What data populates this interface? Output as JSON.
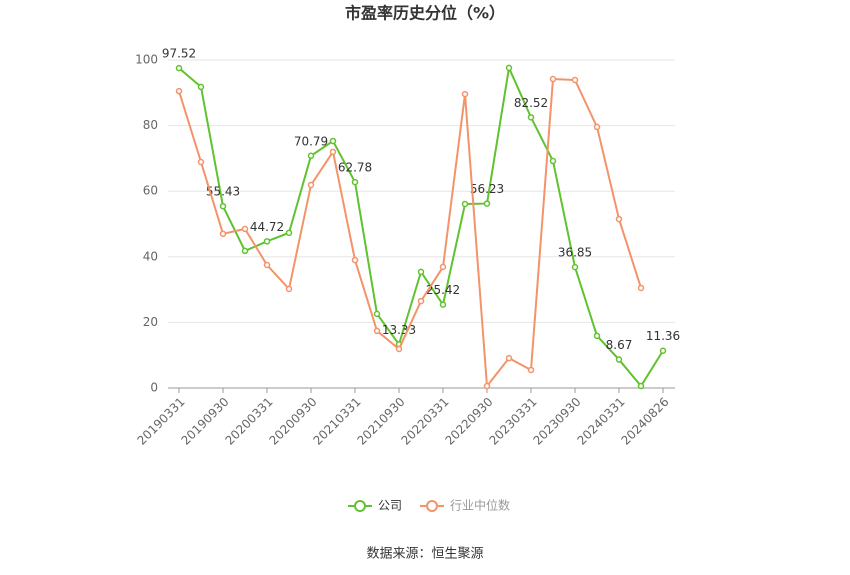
{
  "chart_data": {
    "type": "line",
    "title": "市盈率历史分位（%）",
    "source": "数据来源：恒生聚源",
    "categories": [
      "20190331",
      null,
      "20190930",
      null,
      "20200331",
      null,
      "20200930",
      null,
      "20210331",
      null,
      "20210930",
      null,
      "20220331",
      null,
      "20220930",
      null,
      "20230331",
      null,
      "20230930",
      null,
      "20240331",
      null,
      "20240826"
    ],
    "series": [
      {
        "name": "公司",
        "color": "#5fc22f",
        "values": [
          97.52,
          91.8,
          55.43,
          41.8,
          44.72,
          47.3,
          70.79,
          75.3,
          62.78,
          22.6,
          13.33,
          35.4,
          25.42,
          56.1,
          56.23,
          97.6,
          82.52,
          69.2,
          36.85,
          15.9,
          8.67,
          0.6,
          11.36
        ],
        "value_labels": [
          "97.52",
          null,
          "55.43",
          null,
          "44.72",
          null,
          "70.79",
          null,
          "62.78",
          null,
          "13.33",
          null,
          "25.42",
          null,
          "56.23",
          null,
          "82.52",
          null,
          "36.85",
          null,
          "8.67",
          null,
          "11.36"
        ]
      },
      {
        "name": "行业中位数",
        "color": "#f3936a",
        "values": [
          90.5,
          68.9,
          47.0,
          48.5,
          37.5,
          30.2,
          61.9,
          72.0,
          39.0,
          17.4,
          11.9,
          26.5,
          36.9,
          89.6,
          0.6,
          9.1,
          5.5,
          94.2,
          93.9,
          79.6,
          51.5,
          30.5,
          null
        ]
      }
    ],
    "ylim": [
      0,
      100
    ],
    "yticks": [
      0,
      20,
      40,
      60,
      80,
      100
    ],
    "grid": true
  }
}
